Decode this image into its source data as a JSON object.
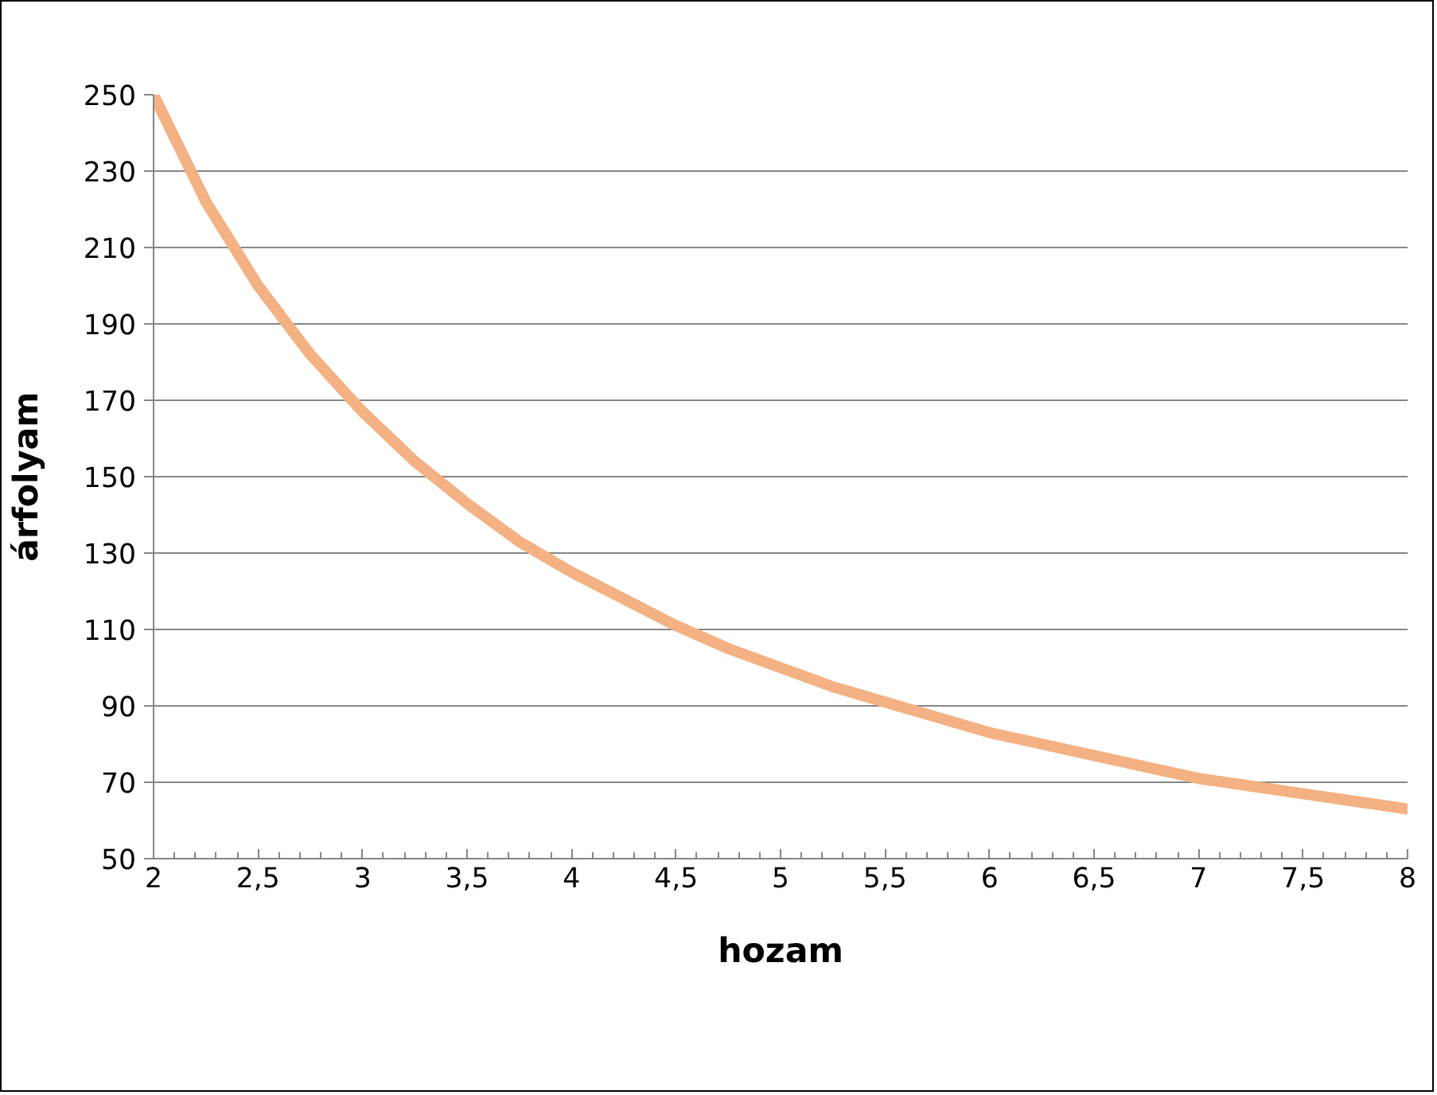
{
  "chart_data": {
    "type": "line",
    "xlabel": "hozam",
    "ylabel": "árfolyam",
    "x": [
      2,
      2.25,
      2.5,
      2.75,
      3,
      3.25,
      3.5,
      3.75,
      4,
      4.25,
      4.5,
      4.75,
      5,
      5.25,
      5.5,
      5.75,
      6,
      6.25,
      6.5,
      6.75,
      7,
      7.25,
      7.5,
      7.75,
      8
    ],
    "series": [
      {
        "color": "#f4b183",
        "values": [
          250,
          222,
          200,
          182,
          167,
          154,
          143,
          133,
          125,
          118,
          111,
          105,
          100,
          95,
          91,
          87,
          83,
          80,
          77,
          74,
          71,
          69,
          67,
          65,
          63
        ]
      }
    ],
    "xlim": [
      2,
      8
    ],
    "xticks": [
      2,
      {
        "value": 2.5,
        "label": "2,5"
      },
      3,
      {
        "value": 3.5,
        "label": "3,5"
      },
      4,
      {
        "value": 4.5,
        "label": "4,5"
      },
      5,
      {
        "value": 5.5,
        "label": "5,5"
      },
      6,
      {
        "value": 6.5,
        "label": "6,5"
      },
      7,
      {
        "value": 7.5,
        "label": "7,5"
      },
      8
    ],
    "ylim": [
      50,
      250
    ],
    "yticks": [
      50,
      70,
      90,
      110,
      130,
      150,
      170,
      190,
      210,
      230,
      250
    ],
    "grid": "y",
    "marker": "none",
    "line_style": "solid"
  }
}
